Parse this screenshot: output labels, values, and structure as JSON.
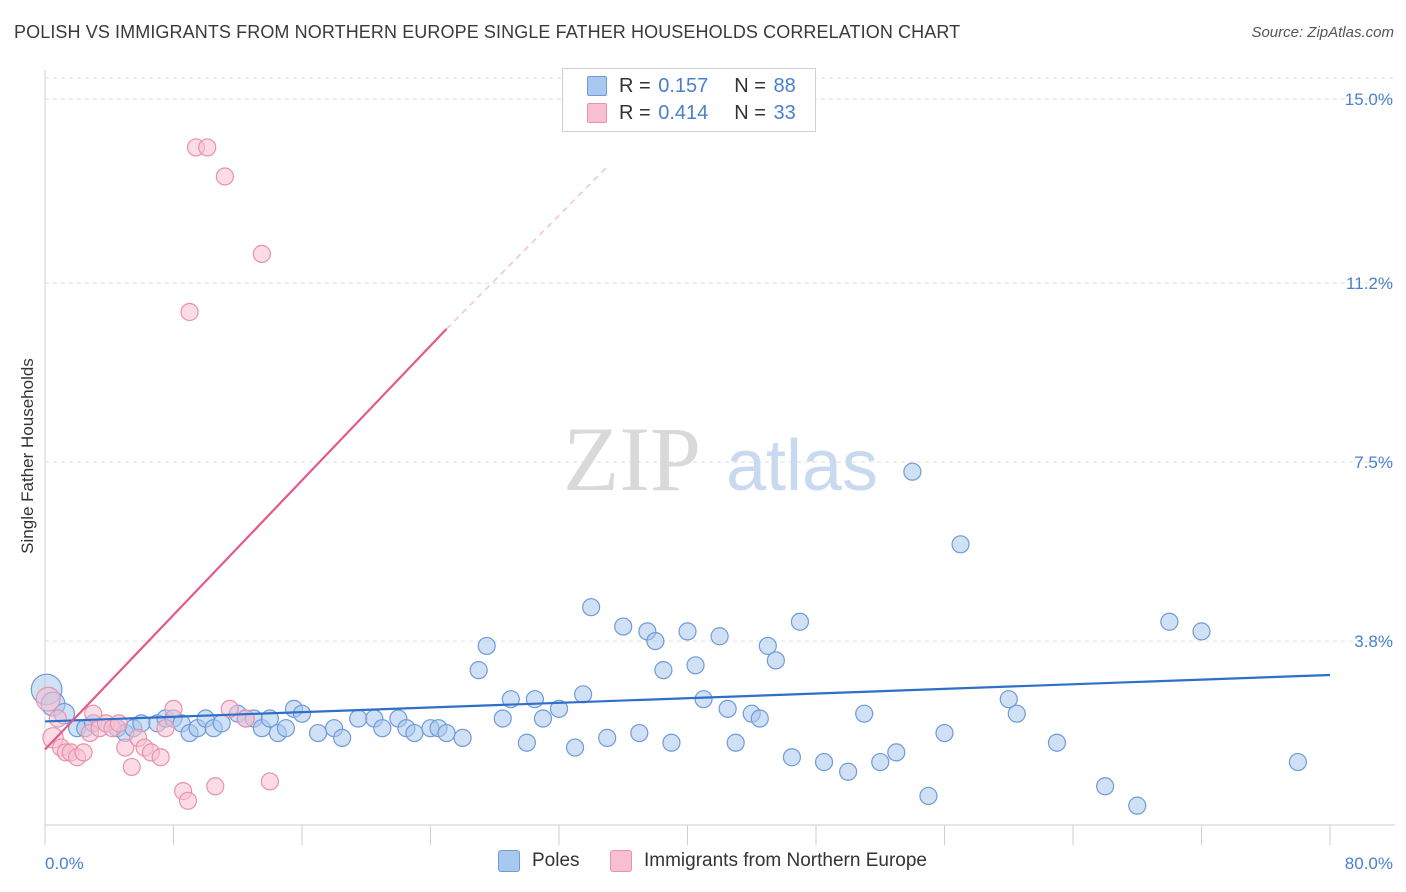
{
  "title": "POLISH VS IMMIGRANTS FROM NORTHERN EUROPE SINGLE FATHER HOUSEHOLDS CORRELATION CHART",
  "source": "Source: ZipAtlas.com",
  "watermark": {
    "zip": "ZIP",
    "atlas": "atlas"
  },
  "legend_top": [
    {
      "r_label": "R = ",
      "r_value": "0.157",
      "n_label": "N = ",
      "n_value": "88"
    },
    {
      "r_label": "R = ",
      "r_value": "0.414",
      "n_label": "N = ",
      "n_value": "33"
    }
  ],
  "colors": {
    "blue_fill": "#a9c8ef",
    "blue_stroke": "#6f9bd8",
    "blue_line": "#2f6fc8",
    "pink_fill": "#f7bfd0",
    "pink_stroke": "#e892ad",
    "pink_line": "#e4588a",
    "axis_text": "#4a7fd0",
    "grid": "#dddddd"
  },
  "chart_data": {
    "type": "scatter",
    "title": "POLISH VS IMMIGRANTS FROM NORTHERN EUROPE SINGLE FATHER HOUSEHOLDS CORRELATION CHART",
    "xlabel": "",
    "ylabel": "Single Father Households",
    "xlim": [
      0,
      80
    ],
    "ylim": [
      0,
      15.6
    ],
    "x_tick_labels": [
      {
        "value": 0,
        "label": "0.0%"
      },
      {
        "value": 80,
        "label": "80.0%"
      }
    ],
    "y_tick_labels": [
      {
        "value": 3.8,
        "label": "3.8%"
      },
      {
        "value": 7.5,
        "label": "7.5%"
      },
      {
        "value": 11.2,
        "label": "11.2%"
      },
      {
        "value": 15.0,
        "label": "15.0%"
      }
    ],
    "x_minor_ticks": [
      0,
      8,
      16,
      24,
      32,
      40,
      48,
      56,
      64,
      72,
      80
    ],
    "series": [
      {
        "name": "Poles",
        "color": "#a9c8ef",
        "trend": {
          "x0": 0,
          "y0": 2.14,
          "x1": 80,
          "y1": 3.1,
          "dashed_to": null
        },
        "points": [
          [
            0.1,
            2.8,
            18
          ],
          [
            0.5,
            2.5,
            14
          ],
          [
            1.2,
            2.3,
            12
          ],
          [
            2.0,
            2.0,
            10
          ],
          [
            2.5,
            2.0,
            10
          ],
          [
            3.0,
            2.1,
            10
          ],
          [
            4.5,
            2.0,
            10
          ],
          [
            5.0,
            1.9,
            10
          ],
          [
            5.5,
            2.0,
            10
          ],
          [
            6.0,
            2.1,
            10
          ],
          [
            7.0,
            2.1,
            10
          ],
          [
            7.5,
            2.2,
            10
          ],
          [
            8.0,
            2.2,
            10
          ],
          [
            8.5,
            2.1,
            10
          ],
          [
            9.0,
            1.9,
            10
          ],
          [
            9.5,
            2.0,
            10
          ],
          [
            10.0,
            2.2,
            10
          ],
          [
            10.5,
            2.0,
            10
          ],
          [
            11.0,
            2.1,
            10
          ],
          [
            12.0,
            2.3,
            10
          ],
          [
            12.5,
            2.2,
            10
          ],
          [
            13.0,
            2.2,
            10
          ],
          [
            13.5,
            2.0,
            10
          ],
          [
            14.0,
            2.2,
            10
          ],
          [
            14.5,
            1.9,
            10
          ],
          [
            15.0,
            2.0,
            10
          ],
          [
            15.5,
            2.4,
            10
          ],
          [
            16.0,
            2.3,
            10
          ],
          [
            17.0,
            1.9,
            10
          ],
          [
            18.0,
            2.0,
            10
          ],
          [
            18.5,
            1.8,
            10
          ],
          [
            19.5,
            2.2,
            10
          ],
          [
            20.5,
            2.2,
            10
          ],
          [
            21.0,
            2.0,
            10
          ],
          [
            22.0,
            2.2,
            10
          ],
          [
            22.5,
            2.0,
            10
          ],
          [
            23.0,
            1.9,
            10
          ],
          [
            24.0,
            2.0,
            10
          ],
          [
            24.5,
            2.0,
            10
          ],
          [
            25.0,
            1.9,
            10
          ],
          [
            26.0,
            1.8,
            10
          ],
          [
            27.0,
            3.2,
            10
          ],
          [
            27.5,
            3.7,
            10
          ],
          [
            28.5,
            2.2,
            10
          ],
          [
            29.0,
            2.6,
            10
          ],
          [
            30.0,
            1.7,
            10
          ],
          [
            30.5,
            2.6,
            10
          ],
          [
            31.0,
            2.2,
            10
          ],
          [
            32.0,
            2.4,
            10
          ],
          [
            33.0,
            1.6,
            10
          ],
          [
            33.5,
            2.7,
            10
          ],
          [
            34.0,
            4.5,
            10
          ],
          [
            35.0,
            1.8,
            10
          ],
          [
            36.0,
            4.1,
            10
          ],
          [
            37.0,
            1.9,
            10
          ],
          [
            37.5,
            4.0,
            10
          ],
          [
            38.0,
            3.8,
            10
          ],
          [
            38.5,
            3.2,
            10
          ],
          [
            39.0,
            1.7,
            10
          ],
          [
            40.0,
            4.0,
            10
          ],
          [
            40.5,
            3.3,
            10
          ],
          [
            41.0,
            2.6,
            10
          ],
          [
            42.0,
            3.9,
            10
          ],
          [
            42.5,
            2.4,
            10
          ],
          [
            43.0,
            1.7,
            10
          ],
          [
            44.0,
            2.3,
            10
          ],
          [
            44.5,
            2.2,
            10
          ],
          [
            45.0,
            3.7,
            10
          ],
          [
            45.5,
            3.4,
            10
          ],
          [
            46.5,
            1.4,
            10
          ],
          [
            47.0,
            4.2,
            10
          ],
          [
            48.5,
            1.3,
            10
          ],
          [
            50.0,
            1.1,
            10
          ],
          [
            51.0,
            2.3,
            10
          ],
          [
            52.0,
            1.3,
            10
          ],
          [
            53.0,
            1.5,
            10
          ],
          [
            54.0,
            7.3,
            10
          ],
          [
            55.0,
            0.6,
            10
          ],
          [
            56.0,
            1.9,
            10
          ],
          [
            57.0,
            5.8,
            10
          ],
          [
            60.0,
            2.6,
            10
          ],
          [
            60.5,
            2.3,
            10
          ],
          [
            63.0,
            1.7,
            10
          ],
          [
            66.0,
            0.8,
            10
          ],
          [
            68.0,
            0.4,
            10
          ],
          [
            70.0,
            4.2,
            10
          ],
          [
            72.0,
            4.0,
            10
          ],
          [
            78.0,
            1.3,
            10
          ]
        ]
      },
      {
        "name": "Immigrants from Northern Europe",
        "color": "#f7bfd0",
        "trend": {
          "x0": 0,
          "y0": 1.56,
          "x1": 25,
          "y1": 10.25,
          "dashed_to": [
            35,
            13.6
          ]
        },
        "points": [
          [
            0.2,
            2.6,
            14
          ],
          [
            0.5,
            1.8,
            12
          ],
          [
            0.8,
            2.2,
            10
          ],
          [
            1.0,
            1.6,
            10
          ],
          [
            1.3,
            1.5,
            10
          ],
          [
            1.6,
            1.5,
            10
          ],
          [
            2.0,
            1.4,
            10
          ],
          [
            2.4,
            1.5,
            10
          ],
          [
            2.8,
            1.9,
            10
          ],
          [
            3.0,
            2.3,
            10
          ],
          [
            3.4,
            2.0,
            10
          ],
          [
            3.8,
            2.1,
            10
          ],
          [
            4.2,
            2.0,
            10
          ],
          [
            4.6,
            2.1,
            10
          ],
          [
            5.0,
            1.6,
            10
          ],
          [
            5.4,
            1.2,
            10
          ],
          [
            5.8,
            1.8,
            10
          ],
          [
            6.2,
            1.6,
            10
          ],
          [
            6.6,
            1.5,
            10
          ],
          [
            7.2,
            1.4,
            10
          ],
          [
            7.5,
            2.0,
            10
          ],
          [
            8.0,
            2.4,
            10
          ],
          [
            8.6,
            0.7,
            10
          ],
          [
            8.9,
            0.5,
            10
          ],
          [
            9.0,
            10.6,
            10
          ],
          [
            9.4,
            14.0,
            10
          ],
          [
            10.1,
            14.0,
            10
          ],
          [
            10.6,
            0.8,
            10
          ],
          [
            11.2,
            13.4,
            10
          ],
          [
            11.5,
            2.4,
            10
          ],
          [
            12.5,
            2.2,
            10
          ],
          [
            13.5,
            11.8,
            10
          ],
          [
            14.0,
            0.9,
            10
          ]
        ]
      }
    ]
  },
  "legend_bottom": [
    {
      "label": "Poles"
    },
    {
      "label": "Immigrants from Northern Europe"
    }
  ]
}
